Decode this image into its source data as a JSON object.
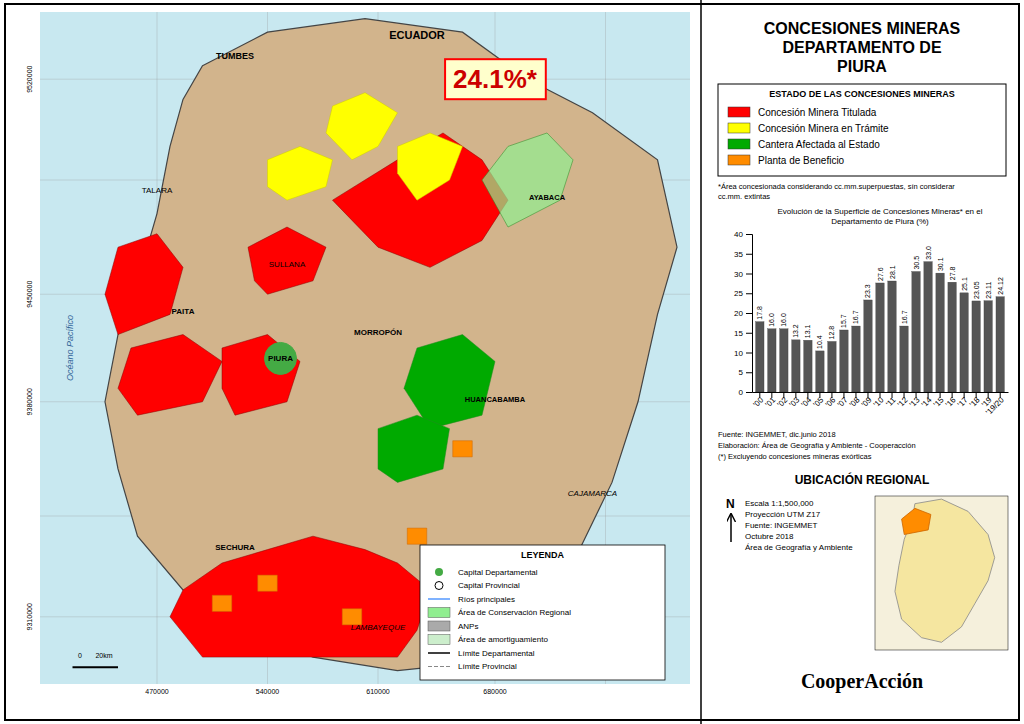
{
  "chart_data": {
    "type": "bar",
    "title": "Evolución de la Superficie de Concesiones Mineras* en el\nDepartamento de Piura (%)",
    "categories": [
      "'00",
      "'01",
      "'02",
      "'03",
      "'04",
      "'05",
      "'06",
      "'07",
      "'08",
      "'09",
      "'10",
      "'11",
      "'12",
      "'13",
      "'14",
      "'15",
      "'16",
      "'17",
      "'18",
      "'19",
      "'19/20"
    ],
    "values": [
      17.8,
      16.0,
      16.0,
      13.2,
      13.1,
      10.4,
      12.8,
      15.7,
      16.7,
      23.3,
      27.6,
      28.1,
      16.7,
      30.5,
      33.0,
      30.1,
      27.8,
      25.1,
      23.05,
      23.11,
      24.12
    ],
    "value_labels": [
      "17.8",
      "16.0",
      "16.0",
      "13.2",
      "13.1",
      "10.4",
      "12.8",
      "15.7",
      "16.7",
      "23.3",
      "27.6",
      "28.1",
      "16.7",
      "30.5",
      "33.0",
      "30.1",
      "27.8",
      "25.1",
      "23.05",
      "23.11",
      "24.12"
    ],
    "color": "#555555",
    "ylim": [
      0,
      40
    ],
    "yticks": [
      0,
      5,
      10,
      15,
      20,
      25,
      30,
      35,
      40
    ],
    "data_labels": true,
    "grid": false,
    "annotations": [
      {
        "text": "CONCESIONES MINERAS"
      },
      {
        "text": "DEPARTAMENTO DE"
      },
      {
        "text": "PIURA"
      },
      {
        "text": "24.1%*",
        "color": "#CC0000"
      },
      {
        "text": "ESTADO DE LAS CONCESIONES MINERAS"
      },
      {
        "text": "Concesión Minera Titulada",
        "color": "#FF0000"
      },
      {
        "text": "Concesión Minera en Trámite",
        "color": "#FFFF00"
      },
      {
        "text": "Cantera Afectada al Estado",
        "color": "#00AA00"
      },
      {
        "text": "Planta de Beneficio",
        "color": "#FF8C00"
      },
      {
        "text": "*Área concesionada considerando cc.mm.superpuestas, sín considerar\ncc.mm. extintas"
      },
      {
        "text": "Fuente: INGEMMET, dic.junio 2018\nElaboración: Área de Geografía y Ambiente - Cooperacción\n(*) Excluyendo concesiones mineras exórticas"
      },
      {
        "text": "UBICACIÓN REGIONAL"
      },
      {
        "text": "N"
      },
      {
        "text": "Escala 1:1,500,000\nProyección UTM Z17\nFuente: INGEMMET\nOctubre 2018\nÁrea de Geografía y Ambiente"
      },
      {
        "text": "CooperAcción"
      },
      {
        "text": "ECUADOR"
      },
      {
        "text": "TUMBES"
      },
      {
        "text": "SULLANA"
      },
      {
        "text": "TALARA"
      },
      {
        "text": "PAITA"
      },
      {
        "text": "PIURA"
      },
      {
        "text": "SECHURA"
      },
      {
        "text": "MORROPÓN"
      },
      {
        "text": "HUANCABAMBA"
      },
      {
        "text": "AYABACA"
      },
      {
        "text": "LAMBAYEQUE"
      },
      {
        "text": "CAJAMARCA"
      },
      {
        "text": "Océano Pacífico",
        "color": "#336699"
      },
      {
        "text": "470000"
      },
      {
        "text": "540000"
      },
      {
        "text": "610000"
      },
      {
        "text": "680000"
      },
      {
        "text": "9310000"
      },
      {
        "text": "9380000"
      },
      {
        "text": "9450000"
      },
      {
        "text": "9520000"
      },
      {
        "text": "0       20km"
      },
      {
        "text": "LEYENDA"
      },
      {
        "text": "Capital Departamental",
        "color": "#44AA44"
      },
      {
        "text": "Capital Provincial",
        "color": "#FFFFFF"
      },
      {
        "text": "Ríos principales",
        "color": "#5599FF"
      },
      {
        "text": "Área de Conservación Regional",
        "color": "#90EE90"
      },
      {
        "text": "ANPs",
        "color": "#AAAAAA"
      },
      {
        "text": "Área de amortiguamiento",
        "color": "#CCEECC"
      },
      {
        "text": "Límite Departamental",
        "color": "#000000"
      },
      {
        "text": "Límite Provincial",
        "color": "#888888"
      }
    ]
  }
}
